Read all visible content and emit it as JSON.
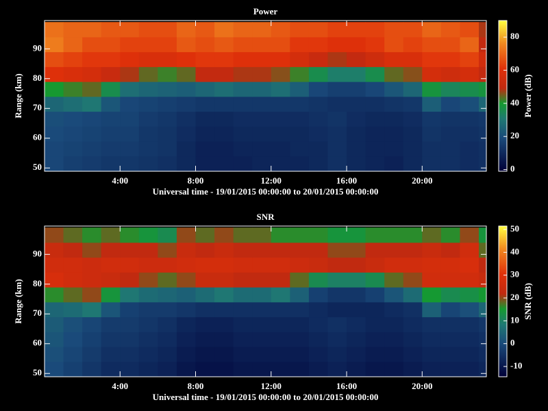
{
  "chart_data": [
    {
      "type": "heatmap",
      "title": "Power",
      "xlabel": "Universal time - 19/01/2015 00:00:00 to 20/01/2015 00:00:00",
      "ylabel": "Range (km)",
      "colorbar_label": "Power (dB)",
      "x": [
        0.5,
        1.5,
        2.5,
        3.5,
        4.5,
        5.5,
        6.5,
        7.5,
        8.5,
        9.5,
        10.5,
        11.5,
        12.5,
        13.5,
        14.5,
        15.5,
        16.5,
        17.5,
        18.5,
        19.5,
        20.5,
        21.5,
        22.5,
        23.5
      ],
      "y": [
        51.5,
        56.5,
        61.5,
        66.5,
        71.5,
        76.5,
        81.5,
        86.5,
        91.5,
        96.5
      ],
      "z": [
        [
          18,
          16,
          15,
          14,
          14,
          13,
          12,
          10,
          8,
          8,
          8,
          9,
          9,
          9,
          10,
          12,
          10,
          9,
          8,
          10,
          12,
          12,
          11,
          12
        ],
        [
          18,
          17,
          16,
          15,
          15,
          14,
          13,
          10,
          8,
          8,
          9,
          9,
          9,
          10,
          10,
          12,
          10,
          9,
          9,
          10,
          12,
          12,
          11,
          12
        ],
        [
          19,
          18,
          17,
          16,
          16,
          14,
          13,
          11,
          9,
          9,
          10,
          10,
          10,
          10,
          11,
          12,
          10,
          9,
          9,
          10,
          13,
          12,
          12,
          13
        ],
        [
          20,
          19,
          18,
          17,
          17,
          15,
          14,
          12,
          10,
          10,
          11,
          11,
          11,
          11,
          12,
          13,
          11,
          10,
          10,
          11,
          14,
          13,
          13,
          14
        ],
        [
          26,
          28,
          30,
          22,
          18,
          17,
          16,
          15,
          14,
          14,
          14,
          14,
          14,
          14,
          13,
          12,
          12,
          12,
          13,
          14,
          24,
          18,
          20,
          26
        ],
        [
          40,
          42,
          44,
          36,
          28,
          26,
          25,
          24,
          26,
          28,
          26,
          26,
          28,
          24,
          18,
          16,
          16,
          18,
          22,
          26,
          38,
          34,
          36,
          38
        ],
        [
          60,
          58,
          56,
          52,
          48,
          44,
          42,
          44,
          50,
          50,
          48,
          48,
          46,
          42,
          36,
          32,
          32,
          36,
          44,
          46,
          56,
          54,
          56,
          50
        ],
        [
          66,
          64,
          62,
          62,
          60,
          58,
          58,
          60,
          62,
          62,
          60,
          60,
          60,
          56,
          52,
          48,
          50,
          54,
          58,
          58,
          62,
          62,
          64,
          55
        ],
        [
          74,
          70,
          66,
          66,
          64,
          64,
          64,
          68,
          66,
          68,
          66,
          66,
          66,
          62,
          62,
          60,
          60,
          62,
          66,
          64,
          66,
          66,
          70,
          50
        ],
        [
          72,
          70,
          70,
          68,
          68,
          66,
          66,
          70,
          68,
          72,
          70,
          70,
          68,
          66,
          66,
          64,
          64,
          64,
          66,
          66,
          70,
          68,
          66,
          48
        ]
      ],
      "xlim": [
        0,
        23.4
      ],
      "ylim": [
        48.9,
        99.5
      ],
      "zlim": [
        -1,
        90
      ],
      "xticks": [
        {
          "value": 4,
          "label": "4:00"
        },
        {
          "value": 8,
          "label": "8:00"
        },
        {
          "value": 12,
          "label": "12:00"
        },
        {
          "value": 16,
          "label": "16:00"
        },
        {
          "value": 20,
          "label": "20:00"
        }
      ],
      "yticks": [
        50,
        60,
        70,
        80,
        90
      ],
      "zticks": [
        0,
        20,
        40,
        60,
        80
      ],
      "colorscale": [
        [
          0,
          "#000038"
        ],
        [
          0.22,
          "#1a4a7a"
        ],
        [
          0.35,
          "#1f7a72"
        ],
        [
          0.45,
          "#159a30"
        ],
        [
          0.55,
          "#c02a10"
        ],
        [
          0.68,
          "#e0300a"
        ],
        [
          0.85,
          "#f08a20"
        ],
        [
          1,
          "#ffff40"
        ]
      ]
    },
    {
      "type": "heatmap",
      "title": "SNR",
      "xlabel": "Universal time - 19/01/2015 00:00:00 to 20/01/2015 00:00:00",
      "ylabel": "Range (km)",
      "colorbar_label": "SNR (dB)",
      "x": [
        0.5,
        1.5,
        2.5,
        3.5,
        4.5,
        5.5,
        6.5,
        7.5,
        8.5,
        9.5,
        10.5,
        11.5,
        12.5,
        13.5,
        14.5,
        15.5,
        16.5,
        17.5,
        18.5,
        19.5,
        20.5,
        21.5,
        22.5,
        23.5
      ],
      "y": [
        51.5,
        56.5,
        61.5,
        66.5,
        71.5,
        76.5,
        81.5,
        86.5,
        91.5,
        96.5
      ],
      "z": [
        [
          0,
          -2,
          -4,
          -6,
          -6,
          -7,
          -8,
          -10,
          -11,
          -11,
          -10,
          -10,
          -10,
          -10,
          -9,
          -8,
          -9,
          -10,
          -10,
          -9,
          -8,
          -8,
          -8,
          -7
        ],
        [
          1,
          -1,
          -3,
          -5,
          -5,
          -6,
          -7,
          -9,
          -10,
          -10,
          -9,
          -9,
          -9,
          -9,
          -8,
          -7,
          -8,
          -9,
          -9,
          -8,
          -7,
          -7,
          -7,
          -6
        ],
        [
          2,
          0,
          -2,
          -4,
          -4,
          -5,
          -6,
          -8,
          -9,
          -9,
          -8,
          -8,
          -8,
          -8,
          -7,
          -6,
          -7,
          -8,
          -8,
          -7,
          -6,
          -6,
          -6,
          -5
        ],
        [
          3,
          1,
          -1,
          -3,
          -3,
          -4,
          -5,
          -7,
          -8,
          -8,
          -7,
          -7,
          -7,
          -7,
          -6,
          -5,
          -6,
          -7,
          -7,
          -6,
          -5,
          -5,
          -5,
          -4
        ],
        [
          5,
          6,
          8,
          2,
          -2,
          -3,
          -3,
          -4,
          -5,
          -5,
          -5,
          -5,
          -5,
          -5,
          -6,
          -7,
          -7,
          -7,
          -6,
          -5,
          4,
          -1,
          1,
          5
        ],
        [
          16,
          18,
          20,
          14,
          8,
          6,
          5,
          4,
          6,
          8,
          6,
          6,
          8,
          4,
          -2,
          -4,
          -4,
          -2,
          2,
          6,
          15,
          12,
          13,
          15
        ],
        [
          28,
          26,
          25,
          24,
          22,
          20,
          18,
          20,
          24,
          24,
          22,
          22,
          22,
          18,
          12,
          10,
          10,
          12,
          18,
          20,
          26,
          26,
          26,
          24
        ],
        [
          26,
          26,
          25,
          26,
          26,
          25,
          25,
          26,
          27,
          27,
          26,
          26,
          26,
          25,
          24,
          22,
          22,
          24,
          26,
          26,
          27,
          27,
          28,
          22
        ],
        [
          24,
          22,
          20,
          22,
          22,
          22,
          20,
          24,
          22,
          24,
          22,
          22,
          22,
          22,
          22,
          20,
          20,
          22,
          22,
          22,
          24,
          22,
          26,
          18
        ],
        [
          20,
          18,
          16,
          18,
          16,
          14,
          12,
          20,
          18,
          20,
          18,
          18,
          16,
          16,
          16,
          14,
          14,
          16,
          16,
          16,
          18,
          16,
          20,
          14
        ]
      ],
      "xlim": [
        0,
        23.4
      ],
      "ylim": [
        48.9,
        99.5
      ],
      "zlim": [
        -14.5,
        51.5
      ],
      "xticks": [
        {
          "value": 4,
          "label": "4:00"
        },
        {
          "value": 8,
          "label": "8:00"
        },
        {
          "value": 12,
          "label": "12:00"
        },
        {
          "value": 16,
          "label": "16:00"
        },
        {
          "value": 20,
          "label": "20:00"
        }
      ],
      "yticks": [
        50,
        60,
        70,
        80,
        90
      ],
      "zticks": [
        -10,
        0,
        10,
        20,
        30,
        40,
        50
      ],
      "colorscale": [
        [
          0,
          "#000038"
        ],
        [
          0.22,
          "#1a4a7a"
        ],
        [
          0.35,
          "#1f7a72"
        ],
        [
          0.45,
          "#159a30"
        ],
        [
          0.55,
          "#c02a10"
        ],
        [
          0.68,
          "#e0300a"
        ],
        [
          0.85,
          "#f08a20"
        ],
        [
          1,
          "#ffff40"
        ]
      ]
    }
  ]
}
